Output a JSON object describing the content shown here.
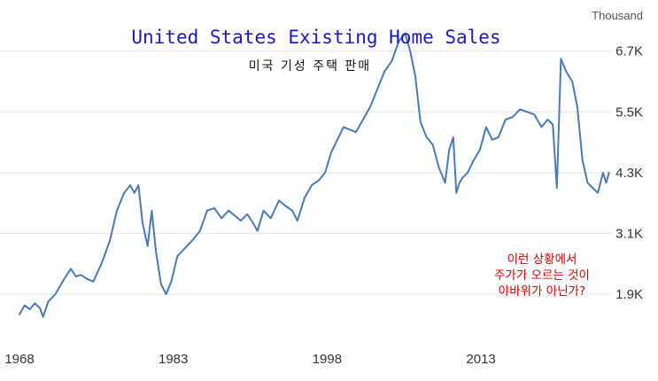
{
  "chart_data": {
    "type": "line",
    "title": "United States Existing Home Sales",
    "subtitle": "미국 기성 주택 판매",
    "unit_label": "Thousand",
    "y_ticks": [
      "6.7K",
      "5.5K",
      "4.3K",
      "3.1K",
      "1.9K"
    ],
    "y_tick_values": [
      6700,
      5500,
      4300,
      3100,
      1900
    ],
    "x_ticks": [
      "1968",
      "1983",
      "1998",
      "2013"
    ],
    "x_tick_values": [
      1968,
      1983,
      1998,
      2013
    ],
    "xlim": [
      1968,
      2025.6
    ],
    "ylim": [
      850,
      7500
    ],
    "grid": "horizontal",
    "line_color": "#4a7ab5",
    "annotation": [
      "이런 상황에서",
      "주가가 오르는 것이",
      "야바위가 아닌가?"
    ],
    "x": [
      1968.0,
      1968.5,
      1969.0,
      1969.5,
      1970.0,
      1970.3,
      1970.8,
      1971.5,
      1972.3,
      1973.0,
      1973.5,
      1974.0,
      1974.6,
      1975.2,
      1976.0,
      1976.8,
      1977.5,
      1978.2,
      1978.8,
      1979.2,
      1979.6,
      1980.0,
      1980.5,
      1980.9,
      1981.3,
      1981.8,
      1982.3,
      1982.8,
      1983.4,
      1984.0,
      1984.8,
      1985.6,
      1986.3,
      1987.0,
      1987.7,
      1988.4,
      1989.0,
      1989.6,
      1990.2,
      1990.8,
      1991.2,
      1991.8,
      1992.5,
      1993.3,
      1993.9,
      1994.6,
      1995.1,
      1995.8,
      1996.5,
      1997.2,
      1997.8,
      1998.4,
      1999.0,
      1999.6,
      2000.2,
      2000.8,
      2001.5,
      2002.2,
      2002.9,
      2003.6,
      2004.3,
      2005.0,
      2005.6,
      2006.1,
      2006.6,
      2007.1,
      2007.7,
      2008.3,
      2008.9,
      2009.5,
      2009.9,
      2010.3,
      2010.6,
      2010.9,
      2011.2,
      2011.7,
      2012.3,
      2012.9,
      2013.5,
      2014.1,
      2014.7,
      2015.4,
      2016.1,
      2016.8,
      2017.5,
      2018.2,
      2018.9,
      2019.5,
      2020.0,
      2020.4,
      2020.8,
      2021.3,
      2021.9,
      2022.4,
      2022.9,
      2023.4,
      2023.9,
      2024.4,
      2024.9,
      2025.2,
      2025.5
    ],
    "values": [
      1500,
      1680,
      1600,
      1720,
      1620,
      1450,
      1750,
      1900,
      2180,
      2400,
      2250,
      2280,
      2200,
      2150,
      2500,
      2950,
      3550,
      3900,
      4050,
      3900,
      4050,
      3300,
      2850,
      3550,
      2750,
      2100,
      1900,
      2150,
      2650,
      2780,
      2950,
      3150,
      3550,
      3600,
      3400,
      3550,
      3450,
      3350,
      3480,
      3300,
      3150,
      3550,
      3400,
      3750,
      3650,
      3550,
      3350,
      3800,
      4050,
      4150,
      4300,
      4700,
      4950,
      5200,
      5150,
      5100,
      5350,
      5600,
      5950,
      6300,
      6500,
      6900,
      7050,
      6700,
      6200,
      5300,
      5000,
      4850,
      4400,
      4100,
      4750,
      5000,
      3900,
      4100,
      4200,
      4300,
      4550,
      4750,
      5200,
      4950,
      5000,
      5350,
      5400,
      5550,
      5500,
      5450,
      5200,
      5350,
      5250,
      4000,
      6550,
      6300,
      6100,
      5600,
      4550,
      4100,
      4000,
      3900,
      4300,
      4100,
      4300
    ]
  }
}
